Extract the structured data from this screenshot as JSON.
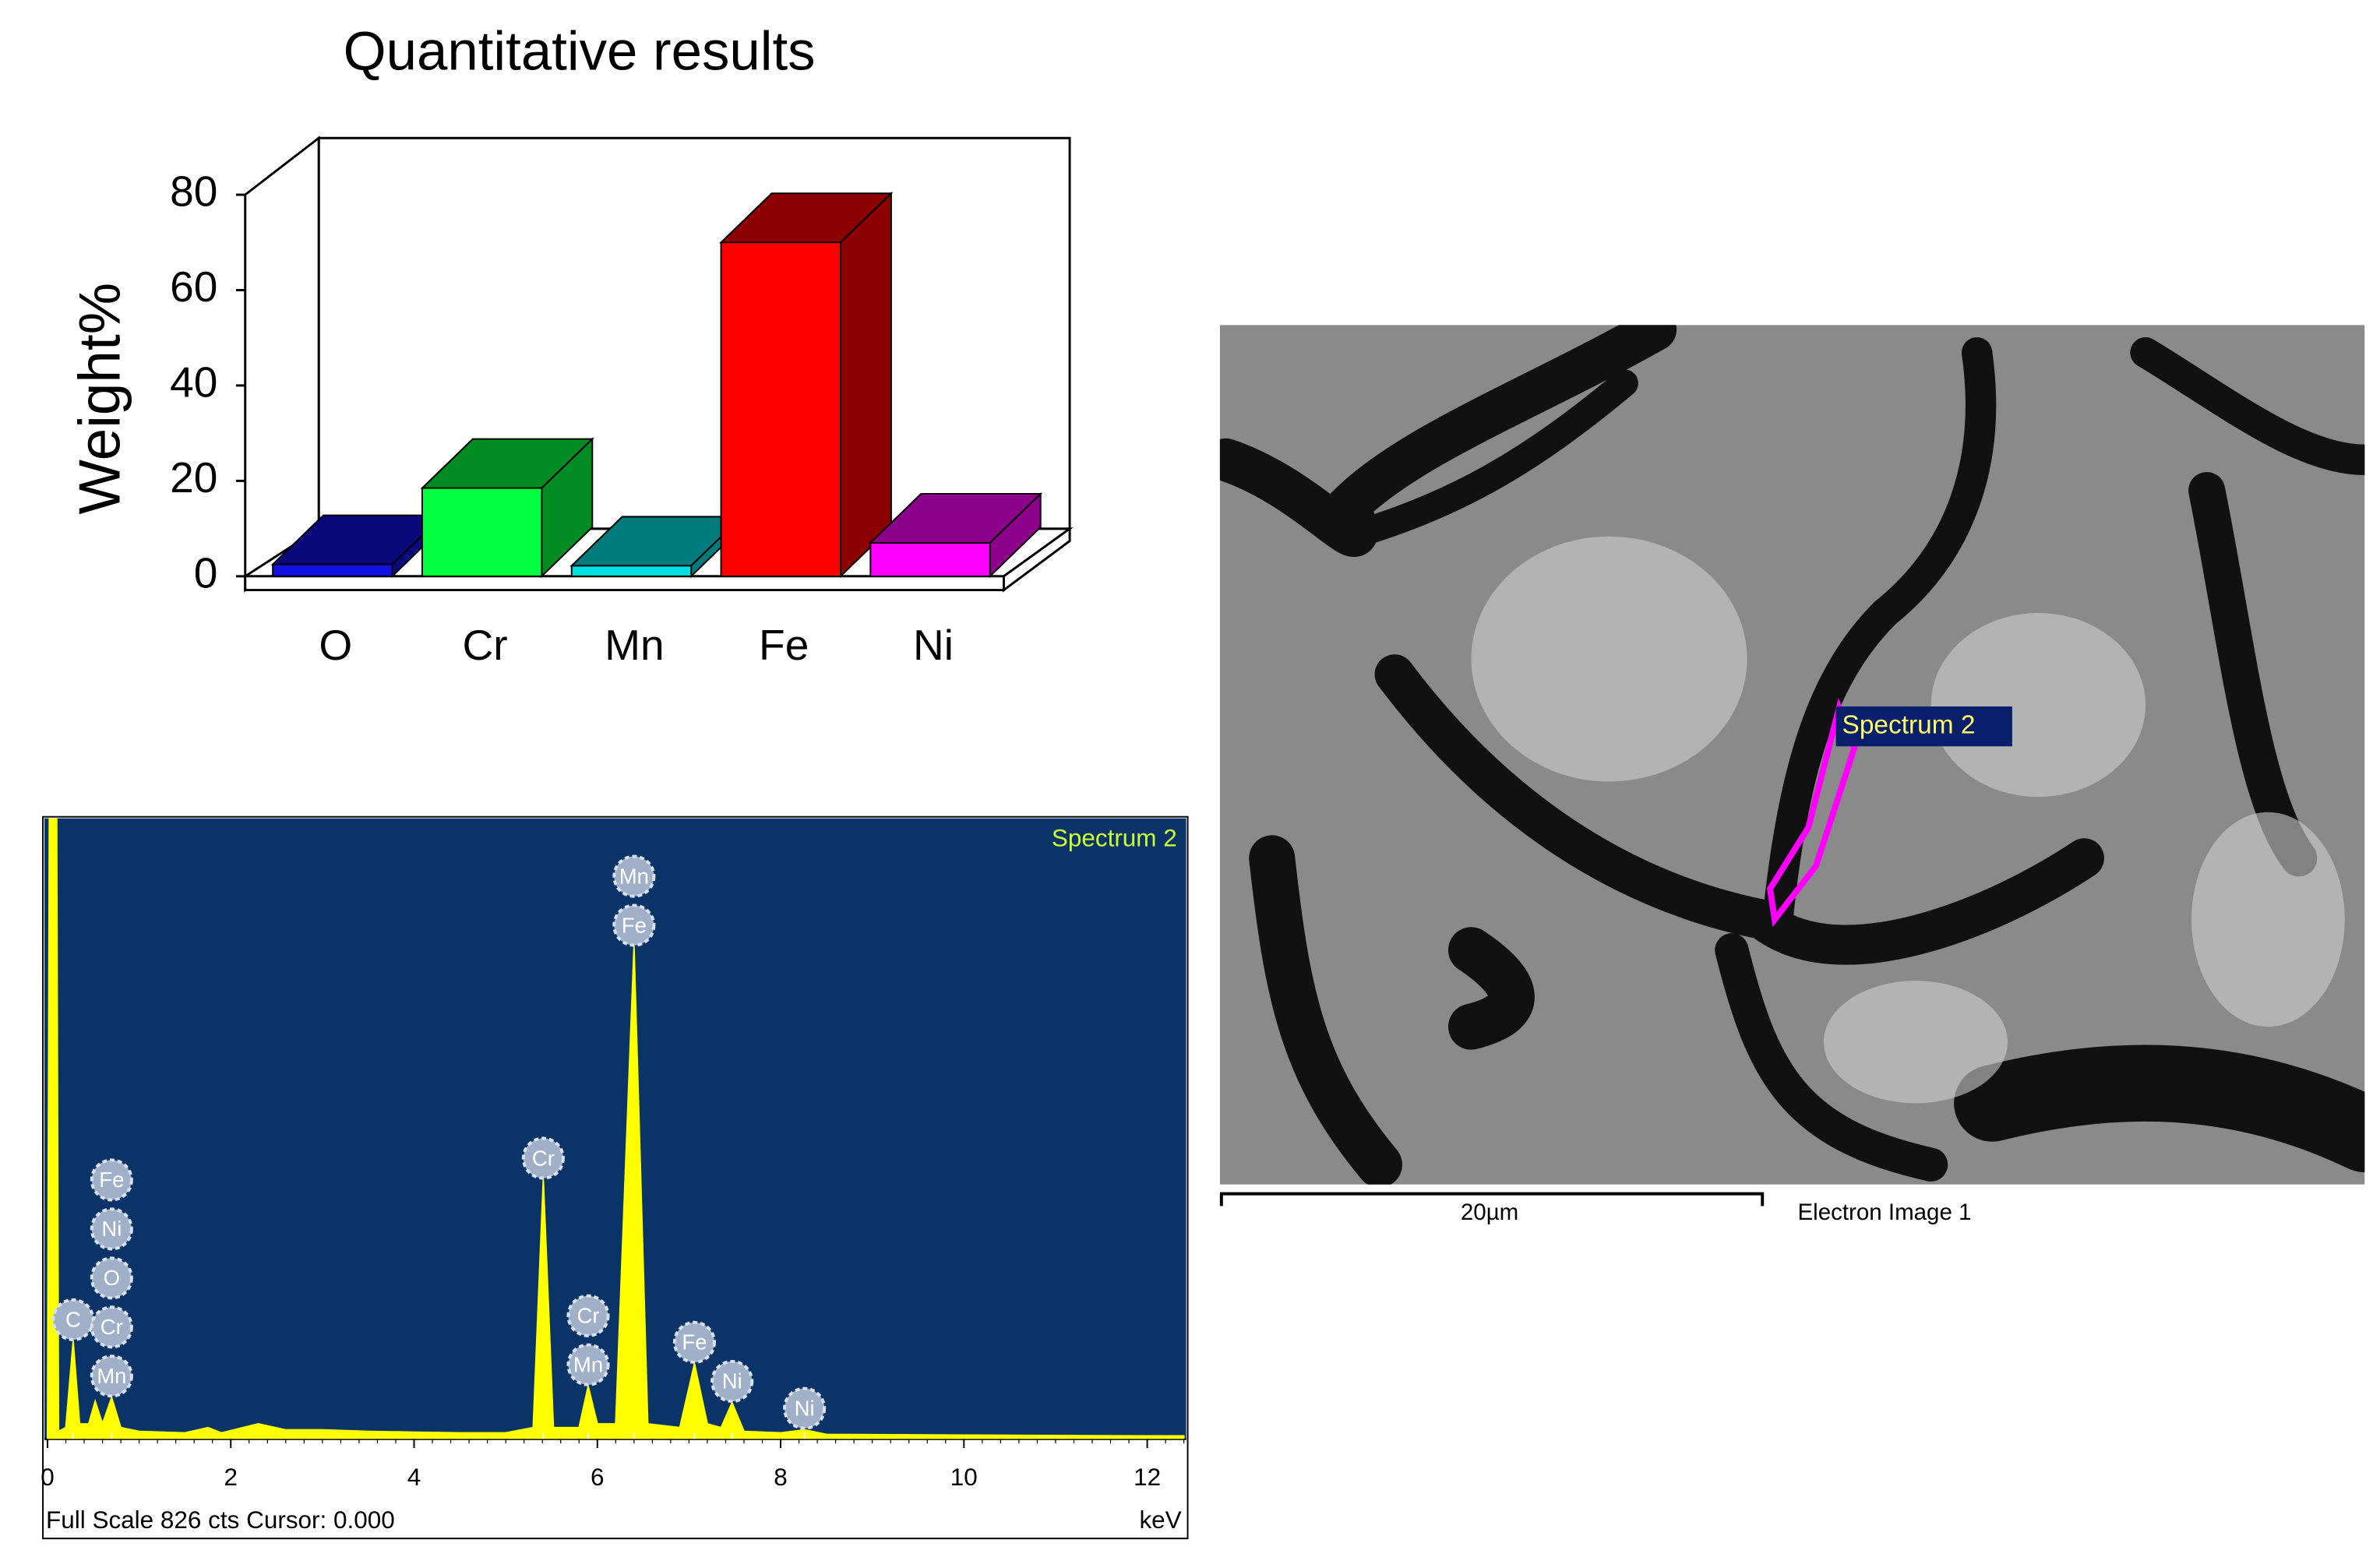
{
  "chart_data": [
    {
      "type": "bar3d",
      "title": "Quantitative results",
      "y_label": "Weight%",
      "categories": [
        "O",
        "Cr",
        "Mn",
        "Fe",
        "Ni"
      ],
      "values": [
        2.5,
        18.5,
        2.2,
        70,
        7
      ],
      "colors": [
        "#1010e0",
        "#00ff40",
        "#00e0e0",
        "#ff0000",
        "#ff00ff"
      ],
      "ylim": [
        0,
        80
      ],
      "yticks": [
        0,
        20,
        40,
        60,
        80
      ]
    },
    {
      "type": "spectrum",
      "title": "Spectrum 2",
      "footer": "Full Scale 826 cts Cursor: 0.000",
      "x_label": "keV",
      "x": [
        0,
        0.02,
        0.1,
        0.12,
        0.2,
        0.28,
        0.35,
        0.45,
        0.52,
        0.6,
        0.7,
        0.8,
        1.0,
        1.5,
        1.75,
        1.9,
        2.3,
        2.6,
        3,
        3.5,
        4,
        4.5,
        5,
        5.3,
        5.41,
        5.52,
        5.8,
        5.9,
        6.0,
        6.2,
        6.4,
        6.55,
        6.9,
        7.06,
        7.2,
        7.35,
        7.47,
        7.6,
        8,
        8.26,
        8.5,
        10,
        12,
        12.4
      ],
      "values": [
        0,
        826,
        826,
        10,
        15,
        130,
        20,
        20,
        50,
        20,
        55,
        15,
        10,
        8,
        15,
        8,
        20,
        12,
        12,
        10,
        9,
        8,
        8,
        15,
        345,
        15,
        15,
        70,
        20,
        20,
        655,
        20,
        15,
        100,
        20,
        15,
        48,
        10,
        8,
        12,
        6,
        5,
        4,
        4
      ],
      "color": "#ffff00",
      "xlim": [
        0,
        12.4
      ],
      "xticks": [
        0,
        2,
        4,
        6,
        8,
        10,
        12
      ],
      "ylim": [
        0,
        826
      ],
      "peak_labels": [
        {
          "x": 0.28,
          "labels": [
            "C"
          ]
        },
        {
          "x": 0.7,
          "labels": [
            "Fe",
            "Ni",
            "O",
            "Cr",
            "Mn"
          ]
        },
        {
          "x": 5.41,
          "labels": [
            "Cr"
          ]
        },
        {
          "x": 5.9,
          "labels": [
            "Cr",
            "Mn"
          ]
        },
        {
          "x": 6.4,
          "labels": [
            "Mn",
            "Fe"
          ]
        },
        {
          "x": 7.06,
          "labels": [
            "Fe"
          ]
        },
        {
          "x": 7.47,
          "labels": [
            "Ni"
          ]
        },
        {
          "x": 8.26,
          "labels": [
            "Ni"
          ]
        }
      ]
    }
  ],
  "electron_image": {
    "overlay_label": "Spectrum 2",
    "scale_bar": "20µm",
    "caption": "Electron Image 1"
  }
}
